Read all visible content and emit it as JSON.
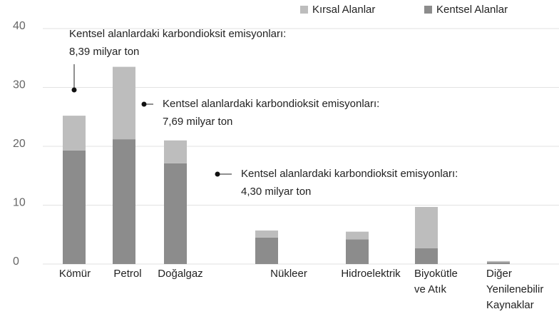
{
  "chart_data": {
    "type": "stacked_bar",
    "categories": [
      "Kömür",
      "Petrol",
      "Doğalgaz",
      "Nükleer",
      "Hidroelektrik",
      "Biyokütle\nve Atık",
      "Diğer\nYenilenebilir\nKaynaklar"
    ],
    "series": [
      {
        "name": "Kentsel Alanlar",
        "color": "#8c8c8c",
        "values": [
          19.3,
          21.2,
          17.1,
          4.5,
          4.2,
          2.7,
          0.3
        ]
      },
      {
        "name": "Kırsal Alanlar",
        "color": "#bdbdbd",
        "values": [
          5.9,
          12.3,
          3.9,
          1.2,
          1.3,
          7.0,
          0.2
        ]
      }
    ],
    "ylim": [
      0,
      40
    ],
    "yticks": [
      0,
      10,
      20,
      30,
      40
    ],
    "grid": true,
    "annotations": [
      "Kentsel alanlardaki karbondioksit emisyonları:\n8,39 milyar ton",
      "Kentsel alanlardaki karbondioksit emisyonları:\n7,69 milyar ton",
      "Kentsel alanlardaki karbondioksit emisyonları:\n4,30 milyar ton"
    ]
  }
}
